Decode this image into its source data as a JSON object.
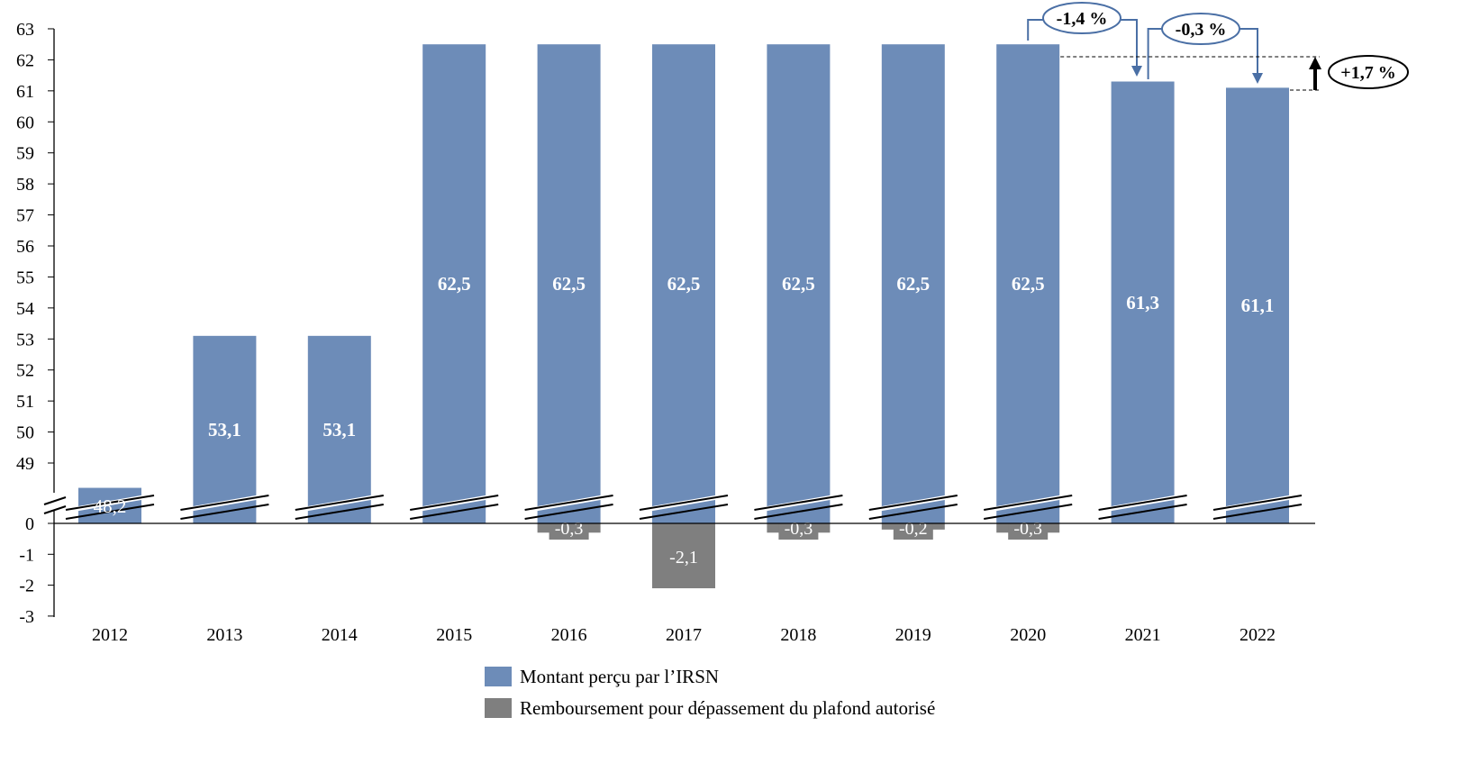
{
  "chart_data": {
    "type": "bar",
    "categories": [
      "2012",
      "2013",
      "2014",
      "2015",
      "2016",
      "2017",
      "2018",
      "2019",
      "2020",
      "2021",
      "2022"
    ],
    "series": [
      {
        "name": "Montant perçu par l’IRSN",
        "color": "#6d8cb8",
        "values": [
          48.2,
          53.1,
          53.1,
          62.5,
          62.5,
          62.5,
          62.5,
          62.5,
          62.5,
          61.3,
          61.1
        ],
        "labels": [
          "48,2",
          "53,1",
          "53,1",
          "62,5",
          "62,5",
          "62,5",
          "62,5",
          "62,5",
          "62,5",
          "61,3",
          "61,1"
        ]
      },
      {
        "name": "Remboursement pour dépassement du plafond autorisé",
        "color": "#7f7f7f",
        "values": [
          0,
          0,
          0,
          0,
          -0.3,
          -2.1,
          -0.3,
          -0.2,
          -0.3,
          0,
          0
        ],
        "labels": [
          "",
          "",
          "",
          "",
          "-0,3",
          "-2,1",
          "-0,3",
          "-0,2",
          "-0,3",
          "",
          ""
        ]
      }
    ],
    "yticks_upper": [
      49,
      50,
      51,
      52,
      53,
      54,
      55,
      56,
      57,
      58,
      59,
      60,
      61,
      62,
      63
    ],
    "yticks_lower": [
      0,
      -1,
      -2,
      -3
    ],
    "ylim": [
      -3,
      63
    ],
    "axis_break": [
      0,
      48
    ],
    "grid": false,
    "legend_placement": "bottom",
    "annotations": [
      {
        "from": "2020",
        "to": "2021",
        "label": "-1,4 %"
      },
      {
        "from": "2021",
        "to": "2022",
        "label": "-0,3 %"
      },
      {
        "from": "2022",
        "to": "2015-2020 level",
        "label": "+1,7 %"
      }
    ]
  }
}
